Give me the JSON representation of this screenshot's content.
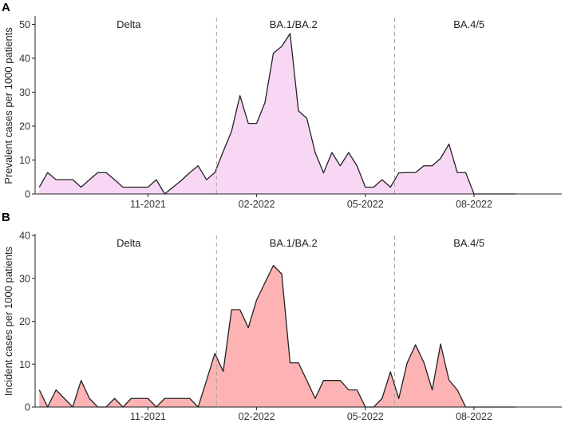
{
  "chart_data": [
    {
      "type": "area",
      "panel": "A",
      "ylabel": "Prevalent cases per 1000 patients",
      "xlabel": "",
      "ylim": [
        0,
        52
      ],
      "yticks": [
        0,
        10,
        20,
        30,
        40,
        50
      ],
      "xticks": [
        {
          "label": "11-2021",
          "week": 13
        },
        {
          "label": "02-2022",
          "week": 26
        },
        {
          "label": "05-2022",
          "week": 39
        },
        {
          "label": "08-2022",
          "week": 52
        }
      ],
      "x_domain": [
        -0.5,
        62.5
      ],
      "variants": [
        {
          "label": "Delta",
          "center": 10.7
        },
        {
          "label": "BA.1/BA.2",
          "center": 30.4
        },
        {
          "label": "BA.4/5",
          "center": 51.4
        }
      ],
      "period_boundaries": [
        21.2,
        42.5
      ],
      "fill": "#f8d7f5",
      "stroke": "#222222",
      "x": [
        0,
        1,
        2,
        3,
        4,
        5,
        6,
        7,
        8,
        9,
        10,
        11,
        12,
        13,
        14,
        15,
        16,
        17,
        18,
        19,
        20,
        21,
        22,
        23,
        24,
        25,
        26,
        27,
        28,
        29,
        30,
        31,
        32,
        33,
        34,
        35,
        36,
        37,
        38,
        39,
        40,
        41,
        42,
        43,
        44,
        45,
        46,
        47,
        48,
        49,
        50,
        51,
        52,
        53,
        54,
        55,
        56,
        57
      ],
      "values": [
        2,
        6.3,
        4.2,
        4.2,
        4.2,
        2,
        4.2,
        6.3,
        6.3,
        4.2,
        2,
        2,
        2,
        2,
        4.2,
        0,
        2,
        4,
        6.3,
        8.3,
        4.2,
        6.3,
        12.5,
        18.5,
        29,
        20.8,
        20.8,
        27,
        41.5,
        43.5,
        47.3,
        24.5,
        22.3,
        12.2,
        6.2,
        12.2,
        8.3,
        12.2,
        8.3,
        2,
        2,
        4.2,
        2,
        6.2,
        6.3,
        6.3,
        8.3,
        8.3,
        10.5,
        14.7,
        6.3,
        6.3,
        0,
        0,
        0,
        0,
        0,
        0
      ]
    },
    {
      "type": "area",
      "panel": "B",
      "ylabel": "Incident cases per 1000 patients",
      "xlabel": "",
      "ylim": [
        0,
        40
      ],
      "yticks": [
        0,
        10,
        20,
        30,
        40
      ],
      "xticks": [
        {
          "label": "11-2021",
          "week": 13
        },
        {
          "label": "02-2022",
          "week": 26
        },
        {
          "label": "05-2022",
          "week": 39
        },
        {
          "label": "08-2022",
          "week": 52
        }
      ],
      "x_domain": [
        -0.5,
        62.5
      ],
      "variants": [
        {
          "label": "Delta",
          "center": 10.7
        },
        {
          "label": "BA.1/BA.2",
          "center": 30.4
        },
        {
          "label": "BA.4/5",
          "center": 51.4
        }
      ],
      "period_boundaries": [
        21.2,
        42.5
      ],
      "fill": "#fdb3b3",
      "stroke": "#222222",
      "x": [
        0,
        1,
        2,
        3,
        4,
        5,
        6,
        7,
        8,
        9,
        10,
        11,
        12,
        13,
        14,
        15,
        16,
        17,
        18,
        19,
        20,
        21,
        22,
        23,
        24,
        25,
        26,
        27,
        28,
        29,
        30,
        31,
        32,
        33,
        34,
        35,
        36,
        37,
        38,
        39,
        40,
        41,
        42,
        43,
        44,
        45,
        46,
        47,
        48,
        49,
        50,
        51,
        52,
        53,
        54,
        55,
        56,
        57
      ],
      "values": [
        4,
        0,
        4,
        2,
        0,
        6.2,
        2,
        0,
        0,
        2,
        0,
        2,
        2,
        2,
        0,
        2,
        2,
        2,
        2,
        0,
        6.2,
        12.5,
        8.3,
        22.7,
        22.7,
        18.5,
        25,
        29,
        33,
        31,
        10.3,
        10.3,
        6.2,
        2,
        6.2,
        6.2,
        6.2,
        4,
        4,
        0,
        0,
        2,
        8.2,
        2,
        10.3,
        14.5,
        10.4,
        4,
        14.7,
        6.3,
        4,
        0,
        0,
        0,
        0,
        0,
        0,
        0
      ]
    }
  ]
}
